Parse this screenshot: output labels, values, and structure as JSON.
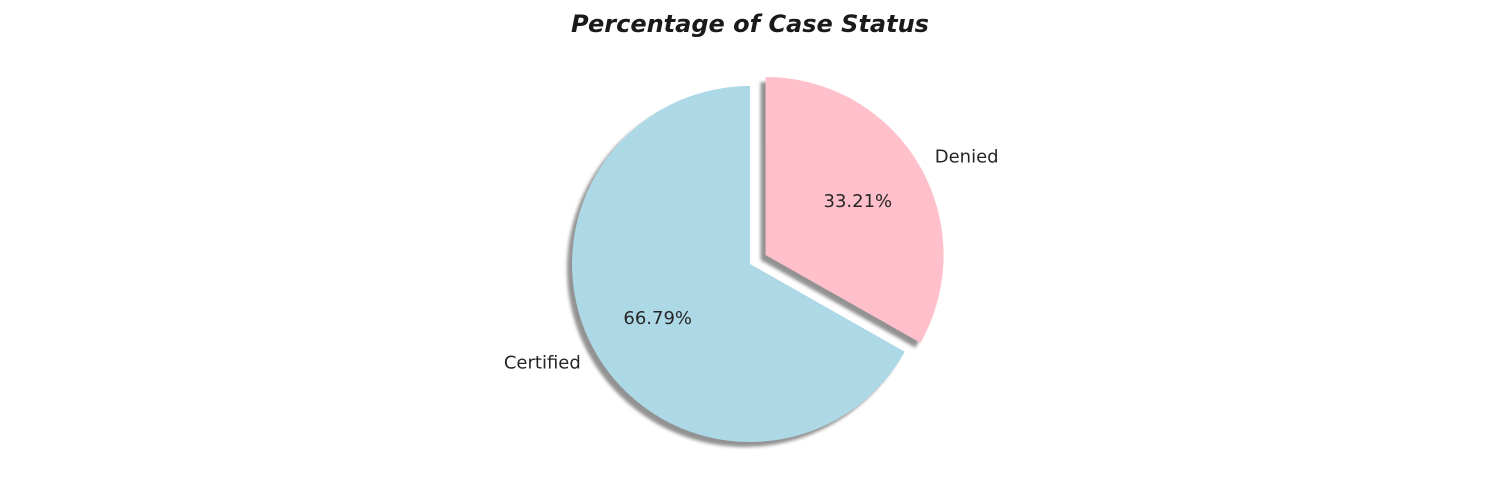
{
  "chart_data": {
    "type": "pie",
    "title": "Percentage of Case Status",
    "categories": [
      "Certified",
      "Denied"
    ],
    "values": [
      66.79,
      33.21
    ],
    "value_labels": [
      "66.79%",
      "33.21%"
    ],
    "colors": [
      "#add8e6",
      "#ffc0cb"
    ],
    "exploded": [
      false,
      true
    ],
    "shadow": true,
    "start_angle_deg": 90
  }
}
